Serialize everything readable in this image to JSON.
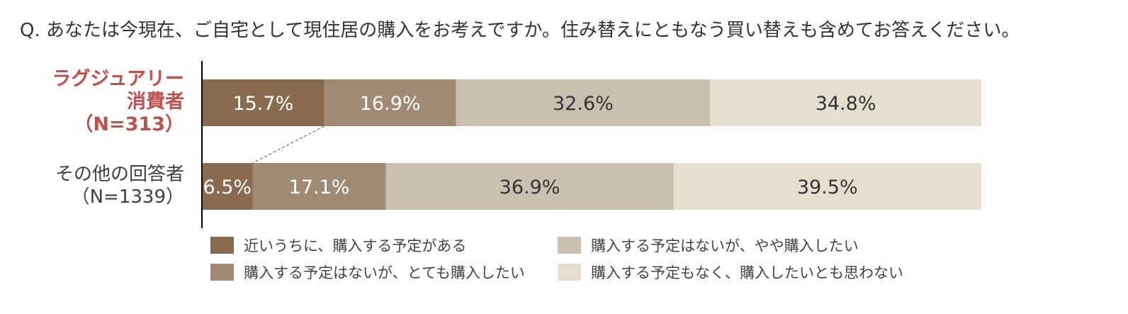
{
  "question": "Q. あなたは今現在、ご自宅として現住居の購入をお考えですか。住み替えにともなう買い替えも含めてお答えください。",
  "chart_data": {
    "type": "bar",
    "orientation": "horizontal",
    "stacked": true,
    "categories": [
      {
        "lines": [
          "ラグジュアリー",
          "消費者",
          "（N=313）"
        ],
        "color": "#c0504d"
      },
      {
        "lines": [
          "その他の回答者",
          "（N=1339）"
        ],
        "color": "#404040"
      }
    ],
    "series": [
      {
        "name": "近いうちに、購入する予定がある",
        "color": "#8b6b50",
        "text_color": "#ffffff",
        "values": [
          15.7,
          6.5
        ],
        "labels": [
          "15.7%",
          "6.5%"
        ]
      },
      {
        "name": "購入する予定はないが、とても購入したい",
        "color": "#a18a74",
        "text_color": "#ffffff",
        "values": [
          16.9,
          17.1
        ],
        "labels": [
          "16.9%",
          "17.1%"
        ]
      },
      {
        "name": "購入する予定はないが、やや購入したい",
        "color": "#cbbfb0",
        "text_color": "#333333",
        "values": [
          32.6,
          36.9
        ],
        "labels": [
          "32.6%",
          "36.9%"
        ]
      },
      {
        "name": "購入する予定もなく、購入したいとも思わない",
        "color": "#e6dfd0",
        "text_color": "#333333",
        "values": [
          34.8,
          39.5
        ],
        "labels": [
          "34.8%",
          "39.5%"
        ]
      }
    ],
    "xlim": [
      0,
      100
    ],
    "grid": false,
    "legend_position": "bottom"
  }
}
